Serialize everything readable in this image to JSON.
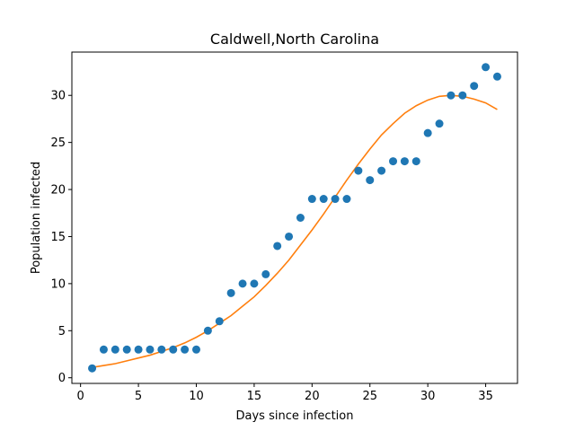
{
  "chart_data": {
    "type": "scatter",
    "title": "Caldwell,North Carolina",
    "xlabel": "Days since infection",
    "ylabel": "Population infected",
    "xlim": [
      -0.75,
      37.75
    ],
    "ylim": [
      -0.6,
      34.6
    ],
    "x_ticks": [
      0,
      5,
      10,
      15,
      20,
      25,
      30,
      35
    ],
    "y_ticks": [
      0,
      5,
      10,
      15,
      20,
      25,
      30
    ],
    "grid": false,
    "series": [
      {
        "kind": "scatter",
        "color": "#1f77b4",
        "x": [
          1,
          2,
          3,
          4,
          5,
          6,
          7,
          8,
          9,
          10,
          11,
          12,
          13,
          14,
          15,
          16,
          17,
          18,
          19,
          20,
          21,
          22,
          23,
          24,
          25,
          26,
          27,
          28,
          29,
          30,
          31,
          32,
          33,
          34,
          35,
          36
        ],
        "y": [
          1,
          3,
          3,
          3,
          3,
          3,
          3,
          3,
          3,
          3,
          5,
          6,
          9,
          10,
          10,
          11,
          14,
          15,
          17,
          19,
          19,
          19,
          19,
          22,
          21,
          22,
          23,
          23,
          23,
          26,
          27,
          30,
          30,
          31,
          33,
          32
        ]
      },
      {
        "kind": "line",
        "color": "#ff7f0e",
        "x": [
          1,
          2,
          3,
          4,
          5,
          6,
          7,
          8,
          9,
          10,
          11,
          12,
          13,
          14,
          15,
          16,
          17,
          18,
          19,
          20,
          21,
          22,
          23,
          24,
          25,
          26,
          27,
          28,
          29,
          30,
          31,
          32,
          33,
          34,
          35,
          36
        ],
        "y": [
          1.1,
          1.3,
          1.5,
          1.8,
          2.1,
          2.4,
          2.8,
          3.2,
          3.7,
          4.3,
          5.0,
          5.8,
          6.6,
          7.6,
          8.6,
          9.8,
          11.1,
          12.5,
          14.1,
          15.7,
          17.4,
          19.2,
          21.0,
          22.7,
          24.3,
          25.8,
          27.0,
          28.1,
          28.9,
          29.5,
          29.9,
          30.0,
          29.9,
          29.6,
          29.2,
          28.5
        ]
      }
    ]
  }
}
